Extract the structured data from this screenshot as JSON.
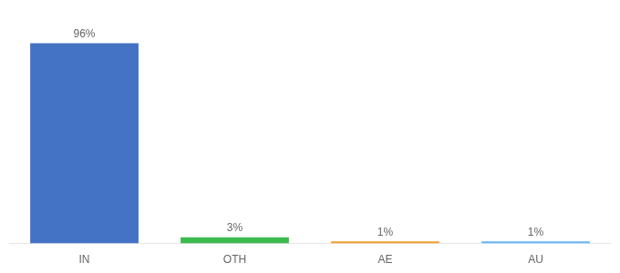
{
  "chart_data": {
    "type": "bar",
    "categories": [
      "IN",
      "OTH",
      "AE",
      "AU"
    ],
    "values": [
      96,
      3,
      1,
      1
    ],
    "value_labels": [
      "96%",
      "3%",
      "1%",
      "1%"
    ],
    "colors": [
      "#4472c4",
      "#3dba4e",
      "#f0a030",
      "#64b5f6"
    ],
    "ylim": [
      0,
      108
    ],
    "data_labels": true,
    "tick_labels": "x",
    "grid": false
  }
}
